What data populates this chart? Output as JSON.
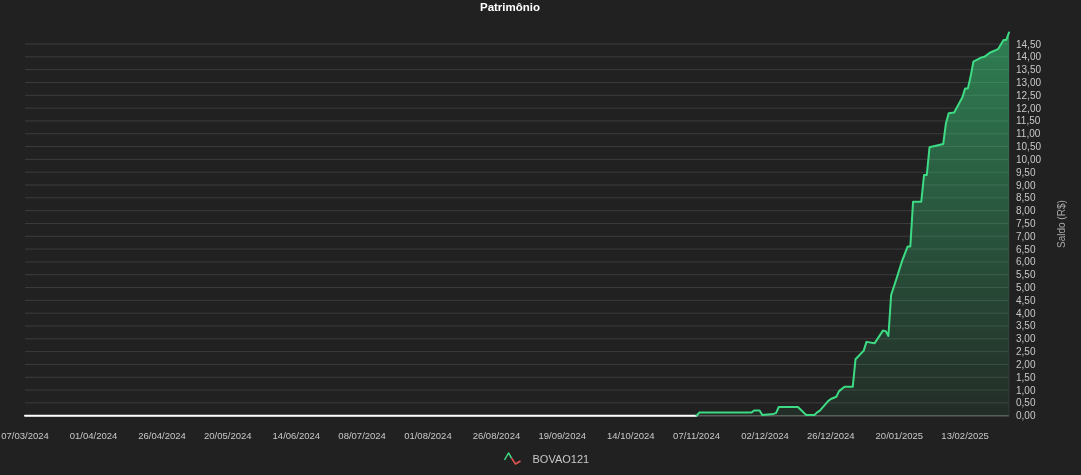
{
  "chart_data": {
    "type": "area",
    "title": "Patrimônio",
    "ylabel": "Saldo (R$)",
    "xlim": [
      "2024-03-07",
      "2025-03-01"
    ],
    "xticks": [
      {
        "value": "2024-03-07",
        "label": "07/03/2024"
      },
      {
        "value": "2024-04-01",
        "label": "01/04/2024"
      },
      {
        "value": "2024-04-26",
        "label": "26/04/2024"
      },
      {
        "value": "2024-05-20",
        "label": "20/05/2024"
      },
      {
        "value": "2024-06-14",
        "label": "14/06/2024"
      },
      {
        "value": "2024-07-08",
        "label": "08/07/2024"
      },
      {
        "value": "2024-08-01",
        "label": "01/08/2024"
      },
      {
        "value": "2024-08-26",
        "label": "26/08/2024"
      },
      {
        "value": "2024-09-19",
        "label": "19/09/2024"
      },
      {
        "value": "2024-10-14",
        "label": "14/10/2024"
      },
      {
        "value": "2024-11-07",
        "label": "07/11/2024"
      },
      {
        "value": "2024-12-02",
        "label": "02/12/2024"
      },
      {
        "value": "2024-12-26",
        "label": "26/12/2024"
      },
      {
        "value": "2025-01-20",
        "label": "20/01/2025"
      },
      {
        "value": "2025-02-13",
        "label": "13/02/2025"
      }
    ],
    "ylim": [
      0,
      14.95
    ],
    "yticks": [
      {
        "value": 0,
        "label": "0,00"
      },
      {
        "value": 0.5,
        "label": "0,50"
      },
      {
        "value": 1,
        "label": "1,00"
      },
      {
        "value": 1.5,
        "label": "1,50"
      },
      {
        "value": 2,
        "label": "2,00"
      },
      {
        "value": 2.5,
        "label": "2,50"
      },
      {
        "value": 3,
        "label": "3,00"
      },
      {
        "value": 3.5,
        "label": "3,50"
      },
      {
        "value": 4,
        "label": "4,00"
      },
      {
        "value": 4.5,
        "label": "4,50"
      },
      {
        "value": 5,
        "label": "5,00"
      },
      {
        "value": 5.5,
        "label": "5,50"
      },
      {
        "value": 6,
        "label": "6,00"
      },
      {
        "value": 6.5,
        "label": "6,50"
      },
      {
        "value": 7,
        "label": "7,00"
      },
      {
        "value": 7.5,
        "label": "7,50"
      },
      {
        "value": 8,
        "label": "8,00"
      },
      {
        "value": 8.5,
        "label": "8,50"
      },
      {
        "value": 9,
        "label": "9,00"
      },
      {
        "value": 9.5,
        "label": "9,50"
      },
      {
        "value": 10,
        "label": "10,00"
      },
      {
        "value": 10.5,
        "label": "10,50"
      },
      {
        "value": 11,
        "label": "11,00"
      },
      {
        "value": 11.5,
        "label": "11,50"
      },
      {
        "value": 12,
        "label": "12,00"
      },
      {
        "value": 12.5,
        "label": "12,50"
      },
      {
        "value": 13,
        "label": "13,00"
      },
      {
        "value": 13.5,
        "label": "13,50"
      },
      {
        "value": 14,
        "label": "14,00"
      },
      {
        "value": 14.5,
        "label": "14,50"
      }
    ],
    "grid": "y",
    "legend": "bottom",
    "series": [
      {
        "type": "line",
        "color": "#ffffff",
        "x": [
          "2024-03-07",
          "2024-11-07"
        ],
        "values": [
          0,
          0
        ]
      },
      {
        "name": "BOVAO121",
        "color": "#3ddc84",
        "x": [
          "2024-11-07",
          "2024-11-08",
          "2024-11-27",
          "2024-11-28",
          "2024-11-30",
          "2024-12-01",
          "2024-12-05",
          "2024-12-06",
          "2024-12-07",
          "2024-12-14",
          "2024-12-17",
          "2024-12-20",
          "2024-12-21",
          "2024-12-22",
          "2024-12-25",
          "2024-12-26",
          "2024-12-28",
          "2024-12-29",
          "2024-12-31",
          "2025-01-03",
          "2025-01-04",
          "2025-01-07",
          "2025-01-08",
          "2025-01-11",
          "2025-01-14",
          "2025-01-15",
          "2025-01-16",
          "2025-01-17",
          "2025-01-19",
          "2025-01-21",
          "2025-01-23",
          "2025-01-24",
          "2025-01-25",
          "2025-01-28",
          "2025-01-29",
          "2025-01-30",
          "2025-01-31",
          "2025-02-05",
          "2025-02-06",
          "2025-02-07",
          "2025-02-09",
          "2025-02-12",
          "2025-02-13",
          "2025-02-14",
          "2025-02-15",
          "2025-02-16",
          "2025-02-19",
          "2025-02-20",
          "2025-02-22",
          "2025-02-25",
          "2025-02-27",
          "2025-02-28",
          "2025-03-01"
        ],
        "values": [
          0,
          0.12,
          0.12,
          0.2,
          0.2,
          0.03,
          0.07,
          0.1,
          0.34,
          0.34,
          0.03,
          0.03,
          0.13,
          0.2,
          0.57,
          0.65,
          0.74,
          0.96,
          1.13,
          1.13,
          2.2,
          2.54,
          2.88,
          2.83,
          3.32,
          3.3,
          3.11,
          4.71,
          5.36,
          6.04,
          6.6,
          6.6,
          8.35,
          8.35,
          9.39,
          9.39,
          10.47,
          10.6,
          11.41,
          11.8,
          11.83,
          12.42,
          12.77,
          12.77,
          13.23,
          13.81,
          13.98,
          14.0,
          14.16,
          14.3,
          14.66,
          14.66,
          14.95
        ]
      }
    ]
  }
}
